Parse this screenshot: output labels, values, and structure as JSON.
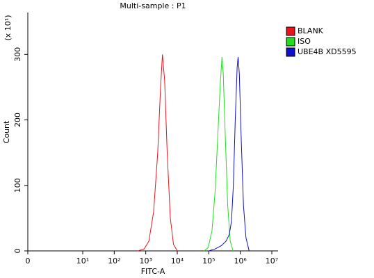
{
  "chart_data": {
    "type": "line",
    "title": "Multi-sample : P1",
    "xlabel": "FITC-A",
    "ylabel": "Count",
    "y_multiplier": "(x 10¹)",
    "xscale": "log",
    "xlim": [
      0,
      15800000
    ],
    "xticks": [
      0,
      {
        "value": 10,
        "label": "10¹"
      },
      {
        "value": 100,
        "label": "10²"
      },
      {
        "value": 1000,
        "label": "10³"
      },
      {
        "value": 10000,
        "label": "10⁴"
      },
      {
        "value": 100000,
        "label": "10⁵"
      },
      {
        "value": 1000000,
        "label": "10⁶"
      },
      {
        "value": 10000000,
        "label": "10⁷"
      }
    ],
    "ylim": [
      0,
      364
    ],
    "yticks": [
      0,
      100,
      200,
      300
    ],
    "legend": "top-right",
    "series": [
      {
        "name": "BLANK",
        "color": "#e8141c",
        "x": [
          562,
          891,
          1259,
          1778,
          2399,
          2951,
          3388,
          3981,
          4786,
          6026,
          7586,
          10000
        ],
        "values": [
          0,
          3,
          15,
          60,
          150,
          250,
          300,
          260,
          150,
          50,
          10,
          0
        ]
      },
      {
        "name": "ISO",
        "color": "#22dd22",
        "x": [
          70795,
          95499,
          125893,
          158489,
          199526,
          234423,
          263027,
          288403,
          331131,
          398107,
          478630,
          588844
        ],
        "values": [
          0,
          5,
          30,
          90,
          190,
          260,
          296,
          270,
          180,
          70,
          15,
          0
        ]
      },
      {
        "name": "UBE4B XD5595",
        "color": "#1010c8",
        "x": [
          100000,
          158489,
          251189,
          354813,
          446684,
          524807,
          602560,
          691831,
          794328,
          851138,
          933254,
          1071519,
          1258925,
          1513561,
          1905461
        ],
        "values": [
          0,
          3,
          8,
          15,
          25,
          45,
          100,
          200,
          280,
          296,
          270,
          170,
          70,
          20,
          0
        ]
      }
    ]
  }
}
